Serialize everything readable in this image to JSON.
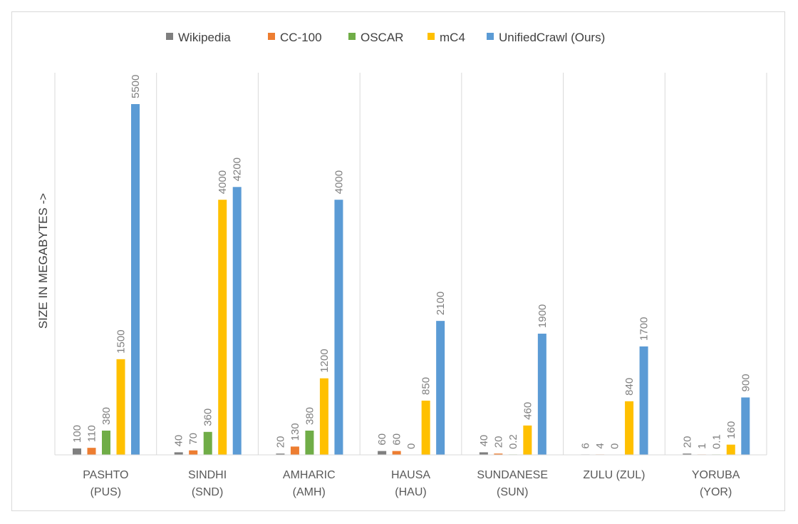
{
  "chart_data": {
    "type": "bar",
    "title": "",
    "ylabel": "SIZE IN MEGABYTES ->",
    "xlabel": "",
    "categories": [
      [
        "PASHTO",
        "(PUS)"
      ],
      [
        "SINDHI",
        "(SND)"
      ],
      [
        "AMHARIC",
        "(AMH)"
      ],
      [
        "HAUSA",
        "(HAU)"
      ],
      [
        "SUNDANESE",
        "(SUN)"
      ],
      [
        "ZULU (ZUL)"
      ],
      [
        "YORUBA",
        "(YOR)"
      ]
    ],
    "series": [
      {
        "name": "Wikipedia",
        "color": "#7f7f7f",
        "values": [
          100,
          40,
          20,
          60,
          40,
          6,
          20
        ],
        "labels": [
          "100",
          "40",
          "20",
          "60",
          "40",
          "6",
          "20"
        ]
      },
      {
        "name": "CC-100",
        "color": "#ed7d31",
        "values": [
          110,
          70,
          130,
          60,
          20,
          4,
          1
        ],
        "labels": [
          "110",
          "70",
          "130",
          "60",
          "20",
          "4",
          "1"
        ]
      },
      {
        "name": "OSCAR",
        "color": "#70ad47",
        "values": [
          380,
          360,
          380,
          0,
          0.2,
          0,
          0.1
        ],
        "labels": [
          "380",
          "360",
          "380",
          "0",
          "0.2",
          "0",
          "0.1"
        ]
      },
      {
        "name": "mC4",
        "color": "#ffc000",
        "values": [
          1500,
          4000,
          1200,
          850,
          460,
          840,
          160
        ],
        "labels": [
          "1500",
          "4000",
          "1200",
          "850",
          "460",
          "840",
          "160"
        ]
      },
      {
        "name": "UnifiedCrawl (Ours)",
        "color": "#5b9bd5",
        "values": [
          5500,
          4200,
          4000,
          2100,
          1900,
          1700,
          900
        ],
        "labels": [
          "5500",
          "4200",
          "4000",
          "2100",
          "1900",
          "1700",
          "900"
        ]
      }
    ],
    "ylim": [
      0,
      5500
    ],
    "grid": false,
    "category_separators": true,
    "legend_position": "top"
  }
}
